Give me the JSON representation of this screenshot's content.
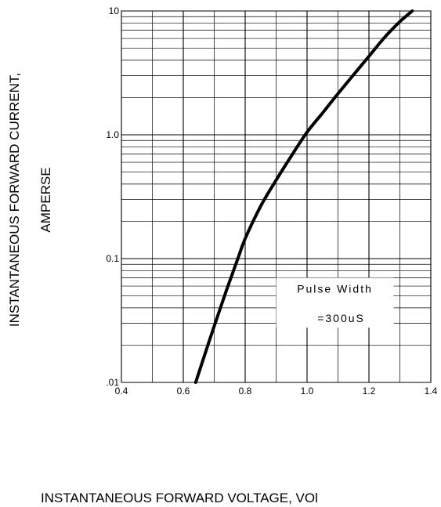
{
  "chart_data": {
    "type": "line",
    "xlabel": "INSTANTANEOUS FORWARD VOLTAGE,  VOl",
    "ylabel_line1": "INSTANTANEOUS FORWARD CURRENT,",
    "ylabel_line2": "AMPERSE",
    "xlim": [
      0.4,
      1.4
    ],
    "ylim": [
      0.01,
      10
    ],
    "yscale": "log",
    "grid": true,
    "x_ticks": [
      {
        "value": 0.4,
        "label": "0.4"
      },
      {
        "value": 0.6,
        "label": "0.6"
      },
      {
        "value": 0.8,
        "label": "0.8"
      },
      {
        "value": 1.0,
        "label": "1.0"
      },
      {
        "value": 1.2,
        "label": "1.2"
      },
      {
        "value": 1.4,
        "label": "1.4"
      }
    ],
    "y_ticks": [
      {
        "value": 0.01,
        "label": ".01"
      },
      {
        "value": 0.1,
        "label": "0.1"
      },
      {
        "value": 1,
        "label": "1.0"
      },
      {
        "value": 10,
        "label": "10"
      }
    ],
    "annotation": {
      "line1": "Pulse Width",
      "line2": "=300uS",
      "x": 1.09,
      "y_line1": 0.057,
      "y_line2": 0.033
    },
    "series": [
      {
        "x": [
          0.64,
          0.66,
          0.68,
          0.7,
          0.72,
          0.74,
          0.76,
          0.78,
          0.8,
          0.85,
          0.9,
          0.95,
          1.0,
          1.05,
          1.1,
          1.15,
          1.2,
          1.25,
          1.3,
          1.34
        ],
        "y": [
          0.01,
          0.0142,
          0.0202,
          0.0285,
          0.04,
          0.056,
          0.077,
          0.106,
          0.145,
          0.265,
          0.43,
          0.68,
          1.05,
          1.5,
          2.15,
          3.05,
          4.3,
          6.1,
          8.2,
          10.0
        ]
      }
    ]
  }
}
